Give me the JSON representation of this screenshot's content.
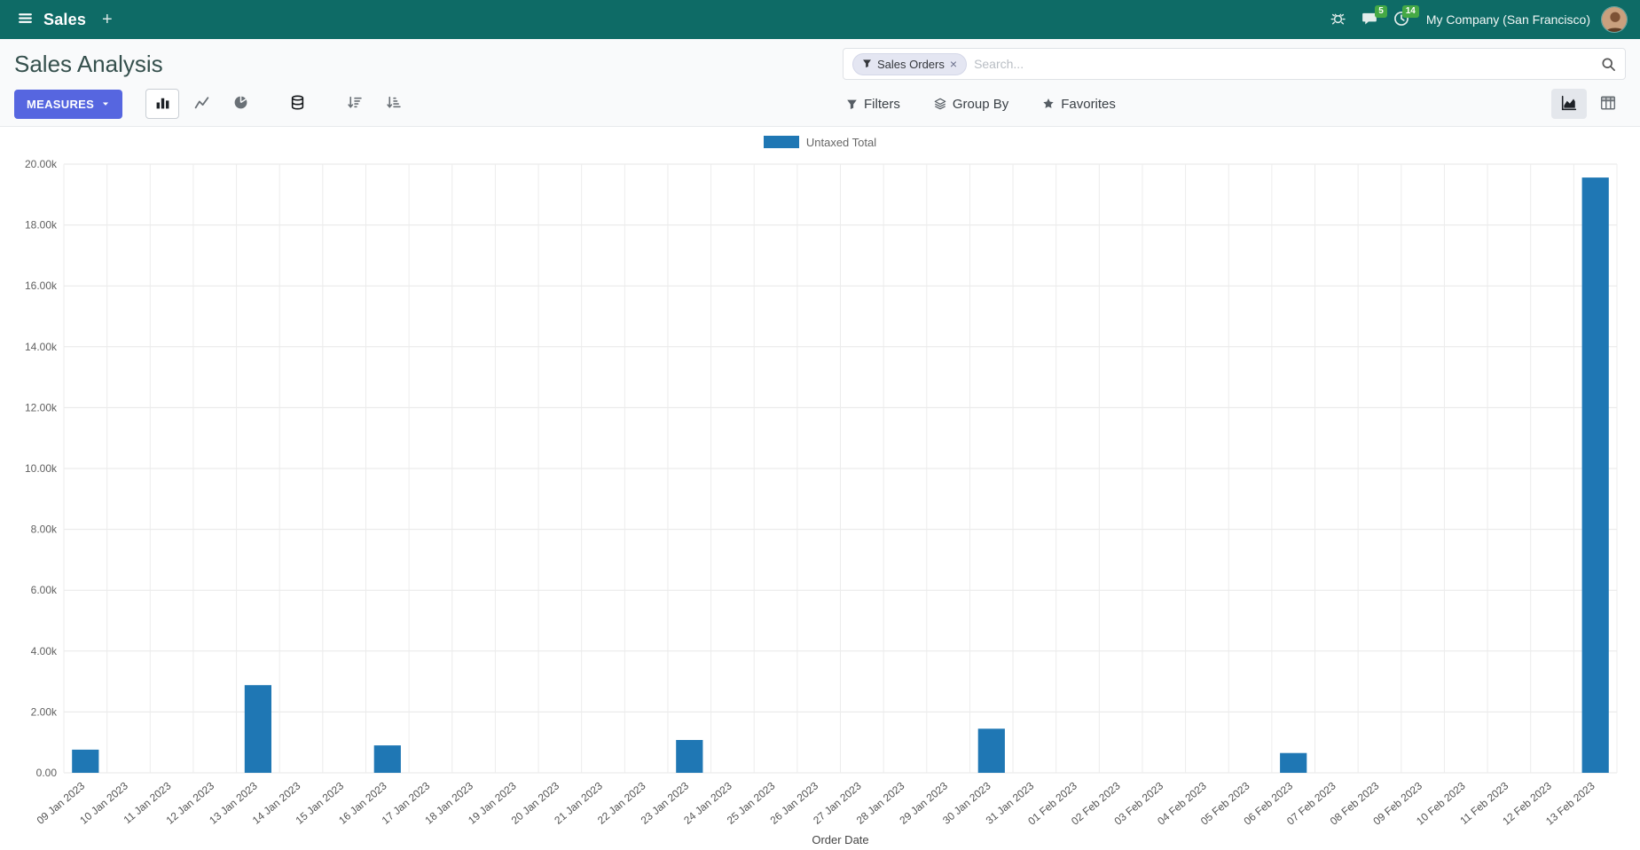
{
  "colors": {
    "navbar_bg": "#0e6b66",
    "primary": "#5666e0",
    "bar": "#1f77b4",
    "badge": "#45a945"
  },
  "navbar": {
    "app_name": "Sales",
    "company": "My Company (San Francisco)",
    "message_badge": "5",
    "activity_badge": "14"
  },
  "control": {
    "title": "Sales Analysis",
    "measures": "MEASURES",
    "search_facet": "Sales Orders",
    "search_placeholder": "Search...",
    "filters": "Filters",
    "group_by": "Group By",
    "favorites": "Favorites"
  },
  "icons": {
    "menu": "hamburger",
    "new": "plus",
    "debug": "bug",
    "messages": "chat-bubble",
    "activities": "clock",
    "search": "magnifier",
    "facet": "funnel",
    "measures_caret": "caret-down",
    "chart_types": [
      "bar-chart",
      "line-chart",
      "pie-chart"
    ],
    "stacked": "database",
    "sorting": [
      "sort-desc",
      "sort-asc"
    ],
    "filters": "funnel",
    "group_by": "layers",
    "favorites": "star",
    "views": [
      "area-chart",
      "pivot-table"
    ]
  },
  "chart_data": {
    "type": "bar",
    "title": "",
    "xlabel": "Order Date",
    "ylabel": "",
    "ylim": [
      0,
      20000
    ],
    "ytick_step": 2000,
    "grid": true,
    "legend_position": "top",
    "categories": [
      "09 Jan 2023",
      "10 Jan 2023",
      "11 Jan 2023",
      "12 Jan 2023",
      "13 Jan 2023",
      "14 Jan 2023",
      "15 Jan 2023",
      "16 Jan 2023",
      "17 Jan 2023",
      "18 Jan 2023",
      "19 Jan 2023",
      "20 Jan 2023",
      "21 Jan 2023",
      "22 Jan 2023",
      "23 Jan 2023",
      "24 Jan 2023",
      "25 Jan 2023",
      "26 Jan 2023",
      "27 Jan 2023",
      "28 Jan 2023",
      "29 Jan 2023",
      "30 Jan 2023",
      "31 Jan 2023",
      "01 Feb 2023",
      "02 Feb 2023",
      "03 Feb 2023",
      "04 Feb 2023",
      "05 Feb 2023",
      "06 Feb 2023",
      "07 Feb 2023",
      "08 Feb 2023",
      "09 Feb 2023",
      "10 Feb 2023",
      "11 Feb 2023",
      "12 Feb 2023",
      "13 Feb 2023"
    ],
    "series": [
      {
        "name": "Untaxed Total",
        "color": "#1f77b4",
        "values": [
          760,
          0,
          0,
          0,
          2880,
          0,
          0,
          900,
          0,
          0,
          0,
          0,
          0,
          0,
          1080,
          0,
          0,
          0,
          0,
          0,
          0,
          1450,
          0,
          0,
          0,
          0,
          0,
          0,
          650,
          0,
          0,
          0,
          0,
          0,
          0,
          19560
        ]
      }
    ]
  }
}
